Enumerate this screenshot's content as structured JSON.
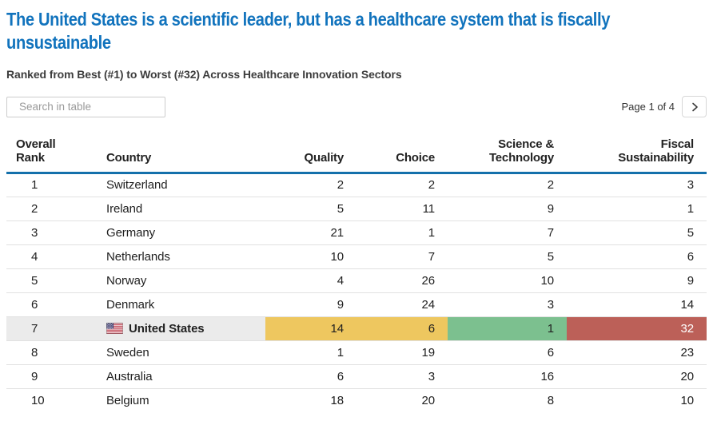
{
  "toolbar": {
    "search_placeholder": "Search in table",
    "page_label": "Page 1 of 4"
  },
  "icons": {
    "search-icon": "magnifier glyph",
    "chevron-right-icon": "›",
    "us-flag-icon": "United States flag"
  },
  "colors": {
    "title_blue": "#1173bd",
    "header_rule_blue": "#1470ab",
    "highlight_row_gray": "#ebebeb",
    "rank_yellow": "#eec75f",
    "rank_green": "#7cc08f",
    "rank_red": "#bc6058",
    "rank_red_text": "#ffffff"
  },
  "chart_data": {
    "type": "table",
    "title": "The United States is a scientific leader, but has a healthcare system that is fiscally unsustainable",
    "subtitle": "Ranked from Best (#1) to Worst (#32) Across Healthcare Innovation Sectors",
    "columns": [
      {
        "key": "rank",
        "label": "Overall Rank"
      },
      {
        "key": "country",
        "label": "Country"
      },
      {
        "key": "quality",
        "label": "Quality"
      },
      {
        "key": "choice",
        "label": "Choice"
      },
      {
        "key": "science",
        "label": "Science & Technology"
      },
      {
        "key": "fiscal",
        "label": "Fiscal Sustainability"
      }
    ],
    "rows": [
      {
        "rank": "1",
        "country": "Switzerland",
        "quality": "2",
        "choice": "2",
        "science": "2",
        "fiscal": "3"
      },
      {
        "rank": "2",
        "country": "Ireland",
        "quality": "5",
        "choice": "11",
        "science": "9",
        "fiscal": "1"
      },
      {
        "rank": "3",
        "country": "Germany",
        "quality": "21",
        "choice": "1",
        "science": "7",
        "fiscal": "5"
      },
      {
        "rank": "4",
        "country": "Netherlands",
        "quality": "10",
        "choice": "7",
        "science": "5",
        "fiscal": "6"
      },
      {
        "rank": "5",
        "country": "Norway",
        "quality": "4",
        "choice": "26",
        "science": "10",
        "fiscal": "9"
      },
      {
        "rank": "6",
        "country": "Denmark",
        "quality": "9",
        "choice": "24",
        "science": "3",
        "fiscal": "14"
      },
      {
        "rank": "7",
        "country": "United States",
        "quality": "14",
        "choice": "6",
        "science": "1",
        "fiscal": "32",
        "highlight": true,
        "flag": "us-flag-icon",
        "cell_colors": {
          "quality": "rank_yellow",
          "choice": "rank_yellow",
          "science": "rank_green",
          "fiscal": "rank_red"
        }
      },
      {
        "rank": "8",
        "country": "Sweden",
        "quality": "1",
        "choice": "19",
        "science": "6",
        "fiscal": "23"
      },
      {
        "rank": "9",
        "country": "Australia",
        "quality": "6",
        "choice": "3",
        "science": "16",
        "fiscal": "20"
      },
      {
        "rank": "10",
        "country": "Belgium",
        "quality": "18",
        "choice": "20",
        "science": "8",
        "fiscal": "10"
      }
    ],
    "layout": {
      "numeric_align": "right",
      "rows_per_page": 10,
      "pages": 4,
      "grid": "horizontal-rules-only",
      "legend": "none"
    }
  }
}
